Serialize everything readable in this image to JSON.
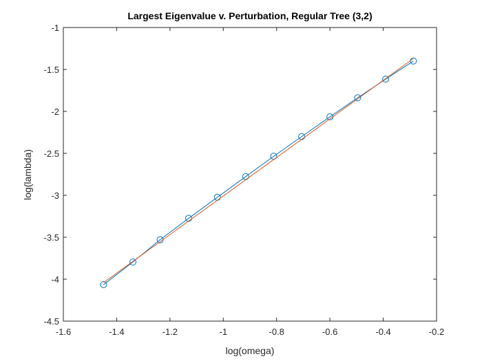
{
  "chart_data": {
    "type": "line",
    "title": "Largest Eigenvalue v. Perturbation, Regular Tree (3,2)",
    "xlabel": "log(omega)",
    "ylabel": "log(lambda)",
    "xlim": [
      -1.6,
      -0.2
    ],
    "ylim": [
      -4.5,
      -1
    ],
    "xticks": [
      -1.6,
      -1.4,
      -1.2,
      -1,
      -0.8,
      -0.6,
      -0.4,
      -0.2
    ],
    "yticks": [
      -4.5,
      -4,
      -3.5,
      -3,
      -2.5,
      -2,
      -1.5,
      -1
    ],
    "xtick_labels": [
      "-1.6",
      "-1.4",
      "-1.2",
      "-1",
      "-0.8",
      "-0.6",
      "-0.4",
      "-0.2"
    ],
    "ytick_labels": [
      "-4.5",
      "-4",
      "-3.5",
      "-3",
      "-2.5",
      "-2",
      "-1.5",
      "-1"
    ],
    "grid": false,
    "legend": "none",
    "series": [
      {
        "color": "#0072BD",
        "marker": "circle",
        "x": [
          -1.449,
          -1.339,
          -1.237,
          -1.13,
          -1.022,
          -0.916,
          -0.811,
          -0.706,
          -0.6,
          -0.496,
          -0.391,
          -0.287
        ],
        "y": [
          -4.065,
          -3.795,
          -3.53,
          -3.275,
          -3.023,
          -2.777,
          -2.535,
          -2.3,
          -2.065,
          -1.838,
          -1.615,
          -1.4
        ]
      },
      {
        "color": "#D95319",
        "marker": "none",
        "x": [
          -1.449,
          -0.287
        ],
        "y": [
          -4.04,
          -1.37
        ]
      }
    ]
  }
}
